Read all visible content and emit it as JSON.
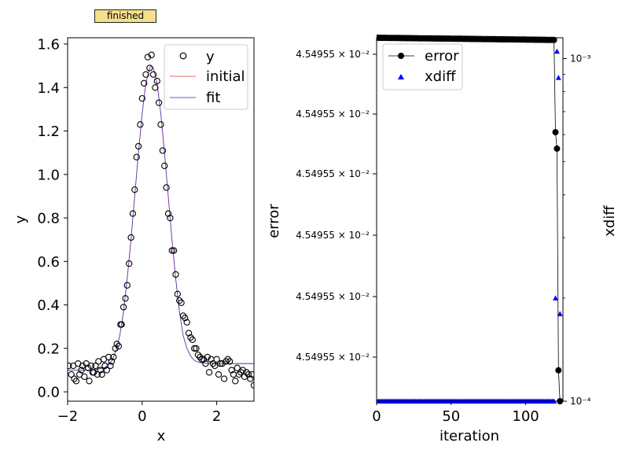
{
  "status_label": "finished",
  "chart_data": [
    {
      "type": "scatter",
      "xlabel": "x",
      "ylabel": "y",
      "xlim": [
        -2,
        3
      ],
      "ylim": [
        -0.043,
        1.629
      ],
      "xticks": [
        -2,
        0,
        2
      ],
      "xtick_labels": [
        "−2",
        "0",
        "2"
      ],
      "yticks": [
        0.0,
        0.2,
        0.4,
        0.6,
        0.8,
        1.0,
        1.2,
        1.4,
        1.6
      ],
      "ytick_labels": [
        "0.0",
        "0.2",
        "0.4",
        "0.6",
        "0.8",
        "1.0",
        "1.2",
        "1.4",
        "1.6"
      ],
      "legend": {
        "placement": "top-right",
        "entries": [
          "y",
          "initial",
          "fit"
        ]
      },
      "colors": {
        "points": "#000000",
        "initial": "#e8302a",
        "fit": "#2323e0"
      },
      "series": [
        {
          "name": "y",
          "kind": "points",
          "x": [
            -1.97,
            -1.9,
            -1.85,
            -1.82,
            -1.77,
            -1.72,
            -1.68,
            -1.63,
            -1.6,
            -1.55,
            -1.5,
            -1.45,
            -1.42,
            -1.37,
            -1.33,
            -1.3,
            -1.25,
            -1.2,
            -1.17,
            -1.12,
            -1.08,
            -1.03,
            -1.0,
            -0.95,
            -0.9,
            -0.85,
            -0.82,
            -0.77,
            -0.72,
            -0.68,
            -0.63,
            -0.58,
            -0.55,
            -0.5,
            -0.45,
            -0.4,
            -0.35,
            -0.3,
            -0.25,
            -0.2,
            -0.15,
            -0.1,
            -0.05,
            0.0,
            0.05,
            0.1,
            0.15,
            0.2,
            0.25,
            0.3,
            0.35,
            0.4,
            0.45,
            0.5,
            0.55,
            0.6,
            0.65,
            0.7,
            0.75,
            0.8,
            0.85,
            0.9,
            0.95,
            1.0,
            1.05,
            1.1,
            1.15,
            1.2,
            1.25,
            1.3,
            1.35,
            1.4,
            1.45,
            1.5,
            1.55,
            1.6,
            1.65,
            1.7,
            1.75,
            1.8,
            1.85,
            1.9,
            1.95,
            2.0,
            2.05,
            2.1,
            2.15,
            2.2,
            2.25,
            2.3,
            2.35,
            2.4,
            2.45,
            2.5,
            2.55,
            2.6,
            2.65,
            2.7,
            2.75,
            2.8,
            2.85,
            2.9,
            2.95,
            3.0
          ],
          "y": [
            0.12,
            0.08,
            0.12,
            0.06,
            0.05,
            0.13,
            0.08,
            0.1,
            0.12,
            0.07,
            0.13,
            0.11,
            0.05,
            0.12,
            0.09,
            0.09,
            0.12,
            0.08,
            0.14,
            0.1,
            0.08,
            0.15,
            0.12,
            0.1,
            0.16,
            0.12,
            0.14,
            0.16,
            0.2,
            0.22,
            0.21,
            0.31,
            0.31,
            0.39,
            0.43,
            0.49,
            0.59,
            0.71,
            0.82,
            0.93,
            1.08,
            1.13,
            1.23,
            1.35,
            1.42,
            1.46,
            1.54,
            1.49,
            1.55,
            1.46,
            1.4,
            1.43,
            1.33,
            1.23,
            1.11,
            1.04,
            0.94,
            0.82,
            0.8,
            0.65,
            0.65,
            0.54,
            0.45,
            0.42,
            0.41,
            0.35,
            0.34,
            0.32,
            0.27,
            0.25,
            0.24,
            0.2,
            0.2,
            0.17,
            0.16,
            0.15,
            0.15,
            0.13,
            0.16,
            0.09,
            0.15,
            0.13,
            0.12,
            0.15,
            0.08,
            0.13,
            0.13,
            0.06,
            0.14,
            0.15,
            0.14,
            0.1,
            0.08,
            0.05,
            0.11,
            0.08,
            0.09,
            0.1,
            0.07,
            0.09,
            0.08,
            0.06,
            0.08,
            0.03
          ]
        },
        {
          "name": "initial",
          "kind": "line",
          "x": [
            -2,
            -1.5,
            -1.25,
            -1,
            -0.9,
            -0.8,
            -0.7,
            -0.6,
            -0.5,
            -0.4,
            -0.3,
            -0.2,
            -0.1,
            0,
            0.1,
            0.2,
            0.25,
            0.3,
            0.4,
            0.5,
            0.6,
            0.7,
            0.8,
            0.9,
            1.0,
            1.1,
            1.2,
            1.3,
            1.4,
            1.5,
            1.6,
            1.75,
            2,
            2.5,
            3
          ],
          "y": [
            0.1,
            0.1,
            0.102,
            0.112,
            0.125,
            0.148,
            0.19,
            0.26,
            0.37,
            0.52,
            0.7,
            0.9,
            1.1,
            1.28,
            1.42,
            1.49,
            1.5,
            1.49,
            1.42,
            1.28,
            1.1,
            0.9,
            0.7,
            0.52,
            0.37,
            0.26,
            0.2,
            0.165,
            0.145,
            0.137,
            0.133,
            0.131,
            0.13,
            0.13,
            0.13
          ]
        },
        {
          "name": "fit",
          "kind": "line",
          "x": [
            -2,
            -1.5,
            -1.25,
            -1,
            -0.9,
            -0.8,
            -0.7,
            -0.6,
            -0.5,
            -0.4,
            -0.3,
            -0.2,
            -0.1,
            0,
            0.1,
            0.2,
            0.25,
            0.3,
            0.4,
            0.5,
            0.6,
            0.7,
            0.8,
            0.9,
            1.0,
            1.1,
            1.2,
            1.3,
            1.4,
            1.5,
            1.6,
            1.75,
            2,
            2.5,
            3
          ],
          "y": [
            0.1,
            0.1,
            0.102,
            0.112,
            0.125,
            0.148,
            0.19,
            0.26,
            0.37,
            0.52,
            0.7,
            0.9,
            1.1,
            1.28,
            1.42,
            1.49,
            1.5,
            1.49,
            1.42,
            1.28,
            1.1,
            0.9,
            0.7,
            0.52,
            0.37,
            0.26,
            0.2,
            0.165,
            0.145,
            0.137,
            0.133,
            0.131,
            0.13,
            0.13,
            0.13
          ]
        }
      ]
    },
    {
      "type": "line",
      "xlabel": "iteration",
      "ylabel": "error",
      "y2label": "xdiff",
      "xlim": [
        0,
        125
      ],
      "xticks": [
        0,
        50,
        100
      ],
      "xtick_labels": [
        "0",
        "50",
        "100"
      ],
      "ytick_labels": [
        "4.54955 × 10⁻²",
        "4.54955 × 10⁻²",
        "4.54955 × 10⁻²",
        "4.54955 × 10⁻²",
        "4.54955 × 10⁻²",
        "4.54955 × 10⁻²"
      ],
      "y2scale": "log",
      "y2lim": [
        0.0001,
        0.00115
      ],
      "y2tick_labels": [
        "10⁻³",
        "10⁻⁴"
      ],
      "legend": {
        "placement": "top-left",
        "entries": [
          "error",
          "xdiff"
        ]
      },
      "colors": {
        "error": "#000000",
        "xdiff": "#0000ff"
      },
      "error_rel": {
        "note_units": "fraction of axis height from bottom",
        "x": [
          0,
          119,
          120,
          121,
          122,
          123
        ],
        "y": [
          1.0,
          0.994,
          0.74,
          0.695,
          0.085,
          0.0
        ]
      },
      "xdiff": {
        "x": [
          0,
          119,
          120,
          121,
          122,
          123
        ],
        "y": [
          0.0001,
          0.0001,
          0.0002,
          0.00105,
          0.00088,
          0.00018
        ]
      }
    }
  ]
}
